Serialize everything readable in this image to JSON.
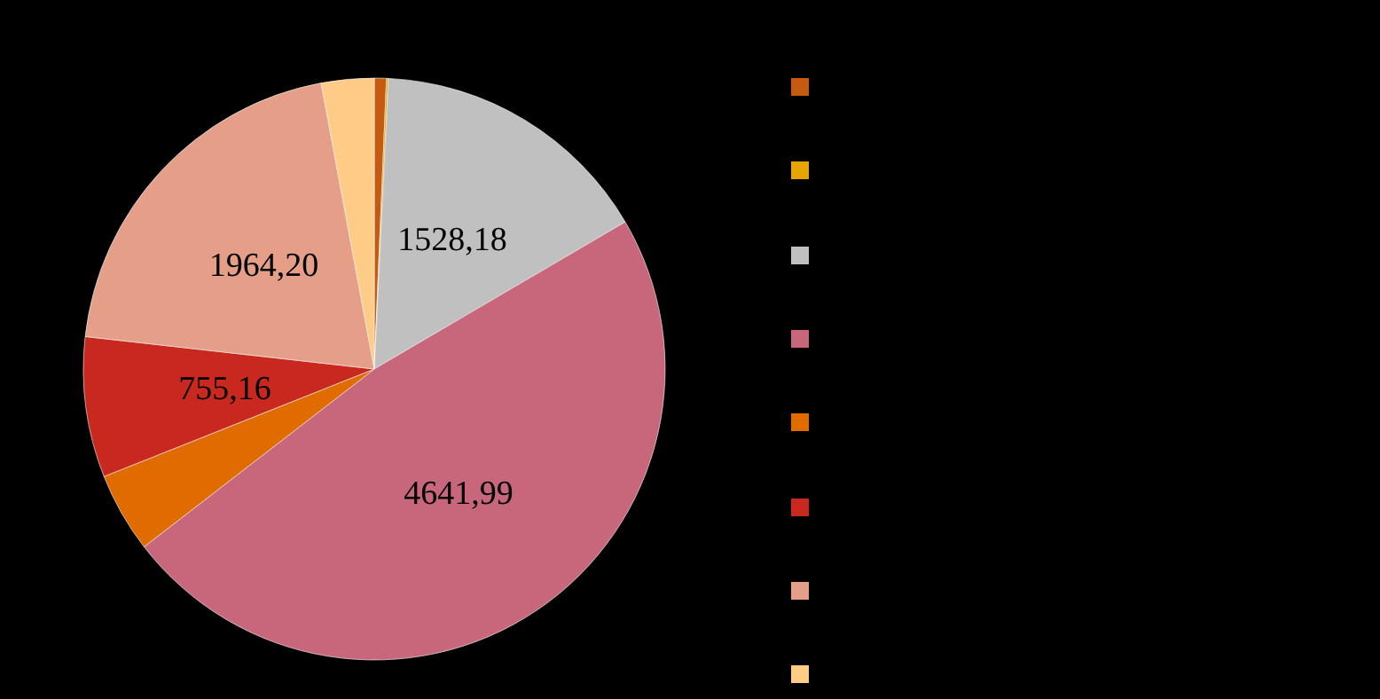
{
  "chart_data": {
    "type": "pie",
    "categories": [
      null,
      null,
      null,
      null,
      null,
      null,
      null,
      null
    ],
    "values": [
      65,
      10,
      1528.18,
      4641.99,
      430,
      755.16,
      1964.2,
      283
    ],
    "value_labels": [
      null,
      null,
      "1528,18",
      "4641,99",
      null,
      "755,16",
      "1964,20",
      null
    ],
    "colors": [
      "#c55a11",
      "#e6a500",
      "#c0c0c0",
      "#c8677c",
      "#e06c00",
      "#c8281e",
      "#e59e87",
      "#ffcc88"
    ]
  }
}
